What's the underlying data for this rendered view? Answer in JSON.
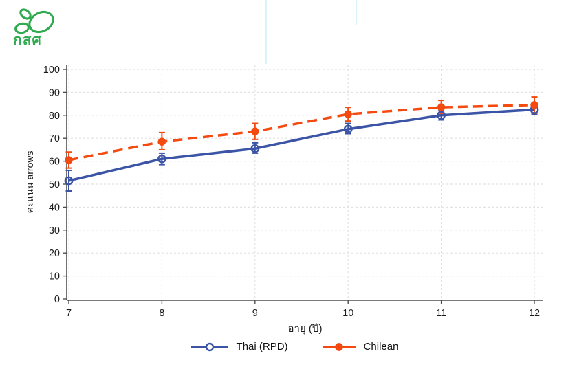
{
  "logo": {
    "text": "กสศ",
    "color": "#2faa4f"
  },
  "palette": {
    "grid": "#e2e2e2",
    "axis": "#4f4f4f",
    "tick_text": "#1a1a1a",
    "faint_accent": "#d9f3f7",
    "background": "#ffffff"
  },
  "chart_data": {
    "type": "line",
    "title": "",
    "xlabel": "อายุ (ปี)",
    "ylabel": "คะแนน arrows",
    "x": [
      7,
      8,
      9,
      10,
      11,
      12
    ],
    "xlim": [
      7,
      12
    ],
    "ylim": [
      0,
      100
    ],
    "yticks": [
      0,
      10,
      20,
      30,
      40,
      50,
      60,
      70,
      80,
      90,
      100
    ],
    "grid": true,
    "legend_position": "bottom-center",
    "error_bars": true,
    "series": [
      {
        "name": "Thai (RPD)",
        "color": "#3b54a5",
        "line_style": "solid",
        "marker": "open-circle",
        "values": [
          51.5,
          61,
          65.5,
          74,
          80,
          82.5
        ],
        "ci_low": [
          47,
          58.5,
          63.5,
          72,
          78,
          80.5
        ],
        "ci_high": [
          56,
          63.5,
          68,
          76.5,
          82,
          84.5
        ]
      },
      {
        "name": "Chilean",
        "color": "#f4490f",
        "line_style": "dashed",
        "marker": "filled-circle",
        "values": [
          60.5,
          68.5,
          73,
          80.5,
          83.5,
          84.5
        ],
        "ci_low": [
          57,
          65,
          69.5,
          77.5,
          80.5,
          81
        ],
        "ci_high": [
          64,
          72.5,
          76.5,
          83.5,
          86.5,
          88
        ]
      }
    ]
  }
}
